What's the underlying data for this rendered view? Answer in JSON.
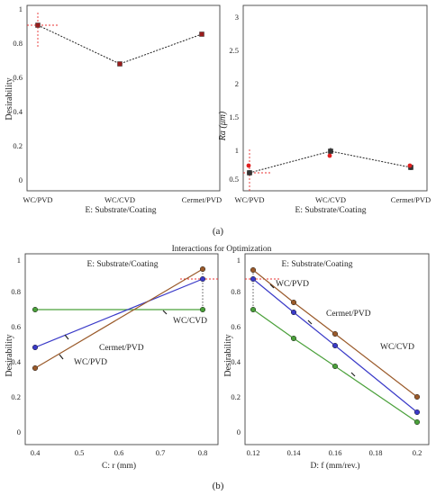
{
  "figure": {
    "label_a": "(a)",
    "label_b": "(b)",
    "interactions_title": "Interactions for Optimization"
  },
  "colors": {
    "point_red": "#9b1c1c",
    "point_dark": "#333333",
    "red_dot": "#e02020",
    "ref_line": "#e83030",
    "wc_pvd": "#9a5a2a",
    "cermet_pvd": "#3a3ac8",
    "wc_cvd": "#4aa03a"
  },
  "chart_data": [
    {
      "id": "a1",
      "type": "line",
      "xlabel": "E: Substrate/Coating",
      "ylabel": "Desirability",
      "categories": [
        "WC/PVD",
        "WC/CVD",
        "Cermet/PVD"
      ],
      "ylim": [
        -0.03,
        1.05
      ],
      "yticks": [
        "0",
        "0.2",
        "0.4",
        "0.6",
        "0.8",
        "1"
      ],
      "series": [
        {
          "values": [
            0.965,
            0.72,
            0.905
          ]
        }
      ],
      "reference": {
        "x": "WC/PVD",
        "y": 0.965
      }
    },
    {
      "id": "a2",
      "type": "line",
      "xlabel": "E: Substrate/Coating",
      "ylabel": "Ra (μm)",
      "categories": [
        "WC/PVD",
        "WC/CVD",
        "Cermet/PVD"
      ],
      "ylim": [
        0.35,
        3.05
      ],
      "yticks": [
        "0.5",
        "1",
        "1.5",
        "2",
        "2.5",
        "3"
      ],
      "series": [
        {
          "values": [
            0.62,
            0.97,
            0.7
          ]
        }
      ],
      "observed": [
        {
          "x": "WC/PVD",
          "y": 0.74
        },
        {
          "x": "WC/CVD",
          "y": 0.9
        },
        {
          "x": "Cermet/PVD",
          "y": 0.74
        }
      ],
      "reference": {
        "x": "WC/PVD",
        "y": 0.62
      }
    },
    {
      "id": "b1",
      "type": "line",
      "subtitle": "E: Substrate/Coating",
      "xlabel": "C: r (mm)",
      "ylabel": "Desirability",
      "xlim": [
        0.4,
        0.8
      ],
      "ylim": [
        -0.05,
        1.03
      ],
      "xticks": [
        "0.4",
        "0.5",
        "0.6",
        "0.7",
        "0.8"
      ],
      "yticks": [
        "0",
        "0.2",
        "0.4",
        "0.6",
        "0.8",
        "1"
      ],
      "series": [
        {
          "name": "WC/PVD",
          "x": [
            0.4,
            0.8
          ],
          "values": [
            0.38,
            0.965
          ]
        },
        {
          "name": "Cermet/PVD",
          "x": [
            0.4,
            0.8
          ],
          "values": [
            0.51,
            0.905
          ]
        },
        {
          "name": "WC/CVD",
          "x": [
            0.4,
            0.8
          ],
          "values": [
            0.72,
            0.72
          ]
        }
      ],
      "reference": {
        "x": 0.8,
        "y": 0.905
      }
    },
    {
      "id": "b2",
      "type": "line",
      "subtitle": "E: Substrate/Coating",
      "xlabel": "D: f (mm/rev.)",
      "ylabel": "Desirability",
      "xlim": [
        0.12,
        0.2
      ],
      "ylim": [
        -0.05,
        1.03
      ],
      "xticks": [
        "0.12",
        "0.14",
        "0.16",
        "0.18",
        "0.2"
      ],
      "yticks": [
        "0",
        "0.2",
        "0.4",
        "0.6",
        "0.8",
        "1"
      ],
      "series": [
        {
          "name": "WC/PVD",
          "x": [
            0.12,
            0.14,
            0.16,
            0.2
          ],
          "values": [
            0.96,
            0.77,
            0.59,
            0.21
          ]
        },
        {
          "name": "Cermet/PVD",
          "x": [
            0.12,
            0.14,
            0.16,
            0.2
          ],
          "values": [
            0.905,
            0.71,
            0.52,
            0.12
          ]
        },
        {
          "name": "WC/CVD",
          "x": [
            0.12,
            0.14,
            0.16,
            0.2
          ],
          "values": [
            0.72,
            0.56,
            0.395,
            0.06
          ]
        }
      ],
      "reference": {
        "x": 0.12,
        "y": 0.905
      }
    }
  ]
}
